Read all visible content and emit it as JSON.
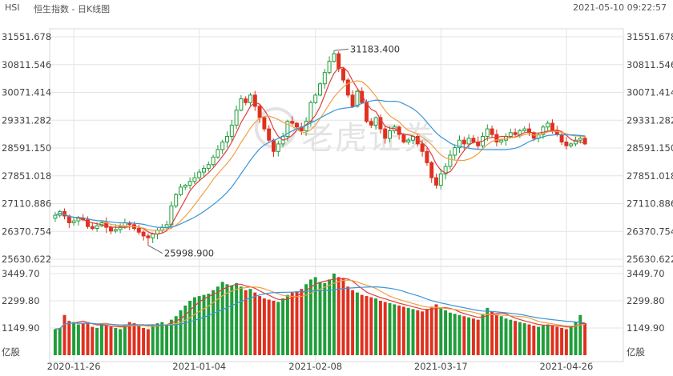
{
  "header": {
    "symbol": "HSI",
    "title": "恒生指数 - 日K线图",
    "timestamp": "2021-05-10 09:22:57"
  },
  "watermark": {
    "text": "老虎证券"
  },
  "colors": {
    "up": "#1f9e3a",
    "down": "#e0301e",
    "ma_short": "#e23c3c",
    "ma_mid": "#f0a040",
    "ma_long": "#3a95d8",
    "grid": "#e4e4e4",
    "text": "#444444"
  },
  "chart_data": [
    {
      "type": "candlestick",
      "title": "",
      "y_ticks": [
        "31551.678",
        "30811.546",
        "30071.414",
        "29331.282",
        "28591.150",
        "27851.018",
        "27110.886",
        "26370.754",
        "25630.622"
      ],
      "ylim": [
        25630.622,
        31551.678
      ],
      "x_ticks": [
        "2020-11-26",
        "2021-01-04",
        "2021-02-08",
        "2021-03-17",
        "2021-04-26"
      ],
      "x_tick_index": [
        4,
        31,
        56,
        83,
        110
      ],
      "annotations": [
        {
          "label": "31183.400",
          "index": 60,
          "value": 31183.4,
          "kind": "high"
        },
        {
          "label": "25998.900",
          "index": 20,
          "value": 25998.9,
          "kind": "low"
        }
      ],
      "closes": [
        26800,
        26900,
        26780,
        26600,
        26650,
        26720,
        26680,
        26500,
        26450,
        26520,
        26600,
        26480,
        26380,
        26420,
        26500,
        26600,
        26550,
        26450,
        26350,
        26250,
        26200,
        26300,
        26400,
        26480,
        26550,
        27050,
        27350,
        27550,
        27600,
        27700,
        27800,
        27950,
        28050,
        28150,
        28350,
        28550,
        28750,
        28900,
        29200,
        29600,
        29900,
        29800,
        30000,
        29700,
        29400,
        29100,
        28800,
        28500,
        28700,
        28900,
        29300,
        29250,
        29150,
        29050,
        29300,
        29800,
        30000,
        30300,
        30600,
        30900,
        31100,
        30700,
        30400,
        30000,
        29700,
        30100,
        29800,
        29300,
        29200,
        29400,
        29100,
        28850,
        29050,
        29150,
        28950,
        28750,
        28800,
        28900,
        28700,
        28500,
        28200,
        27800,
        27600,
        27900,
        28100,
        28400,
        28600,
        28800,
        28700,
        28850,
        28750,
        28650,
        28900,
        29100,
        28950,
        28750,
        28800,
        28900,
        29000,
        28950,
        29050,
        29100,
        29000,
        28850,
        28950,
        29150,
        29250,
        29050,
        28950,
        28750,
        28650,
        28700,
        28800,
        28850,
        28700
      ],
      "volumes": [
        1100,
        1150,
        1700,
        1450,
        1400,
        1300,
        1350,
        1400,
        1200,
        1150,
        1300,
        1250,
        1200,
        1150,
        1100,
        1300,
        1400,
        1350,
        1250,
        1150,
        1100,
        1300,
        1350,
        1400,
        1300,
        1500,
        1650,
        1900,
        2100,
        2300,
        2450,
        2500,
        2550,
        2600,
        2750,
        2900,
        3100,
        3000,
        2950,
        3050,
        2900,
        2750,
        2800,
        2650,
        2500,
        2400,
        2350,
        2300,
        2250,
        2400,
        2550,
        2650,
        2700,
        2800,
        3000,
        3200,
        3300,
        3100,
        3050,
        3200,
        3450,
        3300,
        3250,
        2900,
        2750,
        2650,
        2550,
        2500,
        2450,
        2400,
        2300,
        2250,
        2200,
        2150,
        2100,
        2050,
        2000,
        1950,
        1900,
        1850,
        1950,
        2050,
        2150,
        2000,
        1900,
        1800,
        1750,
        1700,
        1650,
        1600,
        1550,
        1500,
        1750,
        2000,
        1850,
        1700,
        1650,
        1550,
        1500,
        1450,
        1400,
        1350,
        1300,
        1250,
        1200,
        1250,
        1300,
        1250,
        1200,
        1150,
        1100,
        1250,
        1400,
        1700,
        1350
      ],
      "volume_panel": {
        "unit_label": "亿股",
        "y_ticks": [
          "3449.70",
          "2299.80",
          "1149.90"
        ],
        "ylim": [
          0,
          3449.7
        ]
      }
    }
  ]
}
